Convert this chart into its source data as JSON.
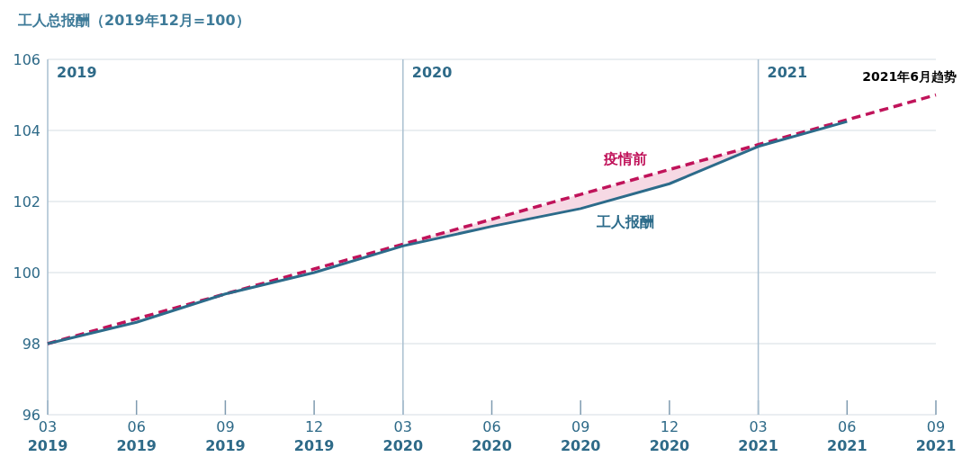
{
  "chart_data": {
    "type": "line",
    "title": "工人总报酬（2019年12月=100）",
    "x": [
      "2019-03",
      "2019-06",
      "2019-09",
      "2019-12",
      "2020-03",
      "2020-06",
      "2020-09",
      "2020-12",
      "2021-03",
      "2021-06",
      "2021-09"
    ],
    "series": [
      {
        "name": "疫情前",
        "color": "#c0135a",
        "line_style": "dashed",
        "values": [
          98.0,
          98.7,
          99.4,
          100.1,
          100.8,
          101.5,
          102.2,
          102.9,
          103.6,
          104.3,
          105.0
        ],
        "lower": [
          null,
          null,
          null,
          null,
          100.75,
          101.3,
          101.8,
          102.5,
          103.55,
          null,
          null
        ],
        "upper": [
          null,
          null,
          null,
          null,
          100.8,
          101.5,
          102.2,
          102.9,
          103.6,
          null,
          null
        ]
      },
      {
        "name": "工人报酬",
        "color": "#2c6b8a",
        "line_style": "solid",
        "values": [
          98.0,
          98.6,
          99.4,
          100.0,
          100.75,
          101.3,
          101.8,
          102.5,
          103.55,
          104.25,
          null
        ]
      }
    ],
    "xlim": [
      "2019-03",
      "2021-09"
    ],
    "xticks": [
      {
        "value": "2019-03",
        "label": "03 2019"
      },
      {
        "value": "2019-06",
        "label": "06 2019"
      },
      {
        "value": "2019-09",
        "label": "09 2019"
      },
      {
        "value": "2019-12",
        "label": "12 2019"
      },
      {
        "value": "2020-03",
        "label": "03 2020"
      },
      {
        "value": "2020-06",
        "label": "06 2020"
      },
      {
        "value": "2020-09",
        "label": "09 2020"
      },
      {
        "value": "2020-12",
        "label": "12 2020"
      },
      {
        "value": "2021-03",
        "label": "03 2021"
      },
      {
        "value": "2021-06",
        "label": "06 2021"
      },
      {
        "value": "2021-09",
        "label": "09 2021"
      }
    ],
    "ylim": [
      96,
      106
    ],
    "yticks": [
      96,
      98,
      100,
      102,
      104,
      106
    ],
    "grid": "y",
    "legend": false,
    "marker": "none",
    "ref_lines": [
      {
        "axis": "x",
        "value": "2020-03",
        "label": "2020",
        "color": "#a9bfd0"
      },
      {
        "axis": "x",
        "value": "2021-03",
        "label": "2021",
        "color": "#a9bfd0"
      }
    ],
    "annotations": [
      "2019",
      "2021年6月趋势"
    ]
  }
}
